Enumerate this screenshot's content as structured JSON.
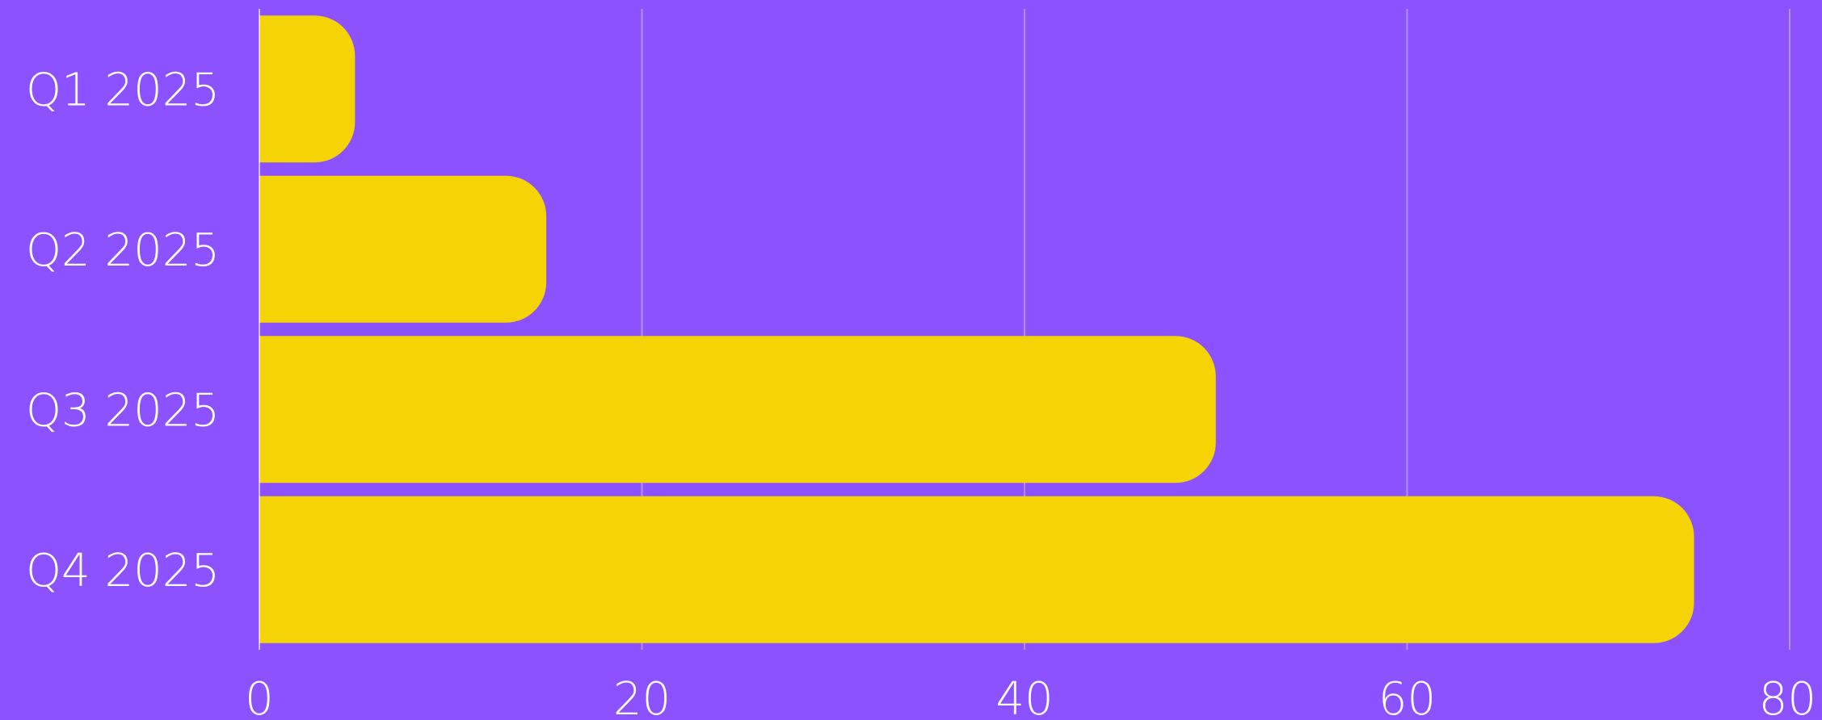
{
  "colors": {
    "background": "#8c52ff",
    "bar": "#f5d305",
    "text": "#ffffff",
    "grid": "#ffffff"
  },
  "chart_data": {
    "type": "bar",
    "orientation": "horizontal",
    "categories": [
      "Q1 2025",
      "Q2 2025",
      "Q3 2025",
      "Q4 2025"
    ],
    "values": [
      5,
      15,
      50,
      75
    ],
    "xlim": [
      0,
      80
    ],
    "x_ticks": [
      "0",
      "20",
      "40",
      "60",
      "80"
    ],
    "title": "",
    "xlabel": "",
    "ylabel": "",
    "grid": true,
    "legend": "none"
  }
}
